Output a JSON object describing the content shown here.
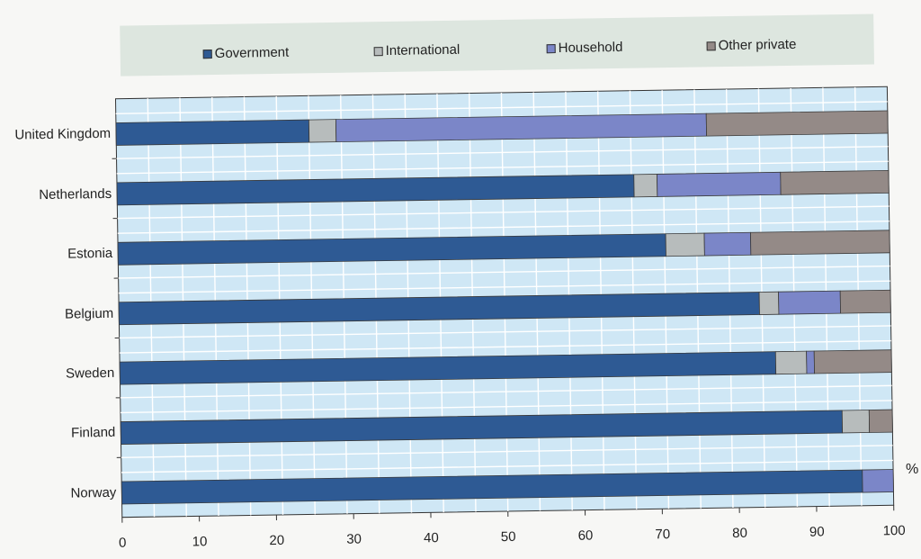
{
  "chart_data": {
    "type": "bar",
    "orientation": "horizontal",
    "stacked": true,
    "categories": [
      "United Kingdom",
      "Netherlands",
      "Estonia",
      "Belgium",
      "Sweden",
      "Finland",
      "Norway"
    ],
    "series": [
      {
        "name": "Government",
        "color": "#2e5a94",
        "values": [
          25,
          67,
          71,
          83,
          85,
          93.5,
          96
        ]
      },
      {
        "name": "International",
        "color": "#b7bcbc",
        "values": [
          3.5,
          3,
          5,
          2.5,
          4,
          3.5,
          0
        ]
      },
      {
        "name": "Household",
        "color": "#7b86c8",
        "values": [
          48,
          16,
          6,
          8,
          1,
          0,
          4
        ]
      },
      {
        "name": "Other private",
        "color": "#948a87",
        "values": [
          23.5,
          14,
          18,
          6.5,
          10,
          3,
          0
        ]
      }
    ],
    "xlim": [
      0,
      100
    ],
    "xticks": [
      0,
      10,
      20,
      30,
      40,
      50,
      60,
      70,
      80,
      90,
      100
    ],
    "unit": "%",
    "legend_position": "top",
    "grid": true,
    "plot_background": "#cfe7f5"
  }
}
